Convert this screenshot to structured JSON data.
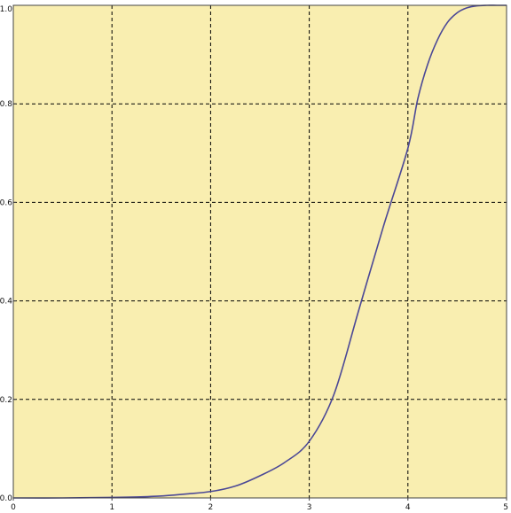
{
  "chart_data": {
    "type": "line",
    "title": "",
    "xlabel": "",
    "ylabel": "",
    "xlim": [
      0,
      5
    ],
    "ylim": [
      0,
      1
    ],
    "x_ticks": [
      0,
      1,
      2,
      3,
      4,
      5
    ],
    "x_tick_labels": [
      "0",
      "1",
      "2",
      "3",
      "4",
      "5"
    ],
    "y_ticks": [
      0.0,
      0.2,
      0.4,
      0.6,
      0.8,
      1.0
    ],
    "y_tick_labels": [
      "0.0",
      "0.2",
      "0.4",
      "0.6",
      "0.8",
      "1.0"
    ],
    "grid": true,
    "grid_style": "dashed",
    "background_color": "#f9eeb0",
    "grid_color": "#000000",
    "line_color": "#4b4896",
    "series": [
      {
        "x": [
          0,
          0.5,
          1.0,
          1.25,
          1.5,
          1.75,
          2.0,
          2.25,
          2.5,
          2.75,
          3.0,
          3.25,
          3.5,
          3.75,
          4.0,
          4.1,
          4.2,
          4.3,
          4.4,
          4.5,
          4.6,
          4.7,
          4.8,
          4.9,
          5.0
        ],
        "y": [
          0.0,
          0.0,
          0.001,
          0.002,
          0.004,
          0.008,
          0.013,
          0.024,
          0.045,
          0.072,
          0.115,
          0.21,
          0.38,
          0.55,
          0.71,
          0.81,
          0.88,
          0.93,
          0.965,
          0.985,
          0.995,
          0.999,
          1.0,
          1.0,
          1.0
        ]
      }
    ]
  }
}
